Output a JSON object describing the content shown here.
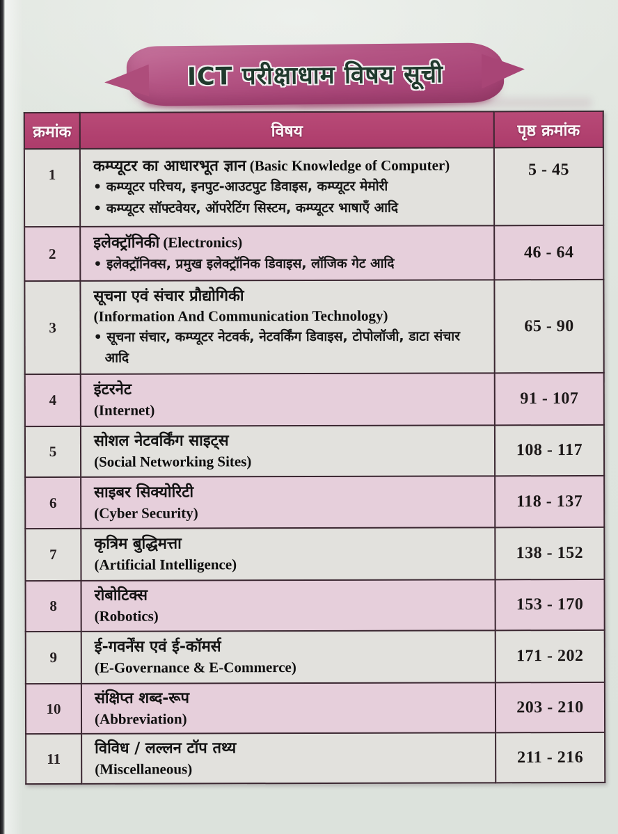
{
  "document": {
    "title": "ICT परीक्षाधाम विषय सूची"
  },
  "table": {
    "header": {
      "serial": "क्रमांक",
      "subject": "विषय",
      "pages": "पृष्ठ क्रमांक"
    },
    "rows": [
      {
        "serial": "1",
        "title_hi": "कम्प्यूटर का आधारभूत ज्ञान",
        "title_en": "(Basic Knowledge of Computer)",
        "bullets": [
          "कम्प्यूटर परिचय, इनपुट-आउटपुट डिवाइस, कम्प्यूटर मेमोरी",
          "कम्प्यूटर सॉफ्टवेयर, ऑपरेटिंग सिस्टम, कम्प्यूटर भाषाएँ आदि"
        ],
        "pages": "5 - 45"
      },
      {
        "serial": "2",
        "title_hi": "इलेक्ट्रॉनिकी",
        "title_en": "(Electronics)",
        "bullets": [
          "इलेक्ट्रॉनिक्स, प्रमुख इलेक्ट्रॉनिक डिवाइस, लॉजिक गेट आदि"
        ],
        "pages": "46 - 64"
      },
      {
        "serial": "3",
        "title_hi": "सूचना एवं संचार प्रौद्योगिकी",
        "title_en": "(Information And Communication Technology)",
        "bullets": [
          "सूचना संचार, कम्प्यूटर नेटवर्क, नेटवर्किंग डिवाइस, टोपोलॉजी, डाटा संचार आदि"
        ],
        "pages": "65 - 90"
      },
      {
        "serial": "4",
        "title_hi": "इंटरनेट",
        "title_en": "(Internet)",
        "pages": "91 - 107"
      },
      {
        "serial": "5",
        "title_hi": "सोशल नेटवर्किंग साइट्स",
        "title_en": "(Social Networking Sites)",
        "pages": "108 - 117"
      },
      {
        "serial": "6",
        "title_hi": "साइबर सिक्योरिटी",
        "title_en": "(Cyber Security)",
        "pages": "118 - 137"
      },
      {
        "serial": "7",
        "title_hi": "कृत्रिम बुद्धिमत्ता",
        "title_en": "(Artificial Intelligence)",
        "pages": "138 - 152"
      },
      {
        "serial": "8",
        "title_hi": "रोबोटिक्स",
        "title_en": "(Robotics)",
        "pages": "153 - 170"
      },
      {
        "serial": "9",
        "title_hi": "ई-गवर्नेंस एवं ई-कॉमर्स",
        "title_en": "(E-Governance & E-Commerce)",
        "pages": "171 - 202"
      },
      {
        "serial": "10",
        "title_hi": "संक्षिप्त शब्द-रूप",
        "title_en": "(Abbreviation)",
        "pages": "203 - 210"
      },
      {
        "serial": "11",
        "title_hi": "विविध / लल्लन टॉप तथ्य",
        "title_en": "(Miscellaneous)",
        "pages": "211 - 216"
      }
    ]
  },
  "colors": {
    "header_bg": "#ad3c6b",
    "brush": "#b45584",
    "row_pink": "#e6cfdb",
    "row_light": "#e2e1dd",
    "paper": "#dfe4de",
    "border": "#3a2630",
    "title_text": "#203a2d"
  }
}
